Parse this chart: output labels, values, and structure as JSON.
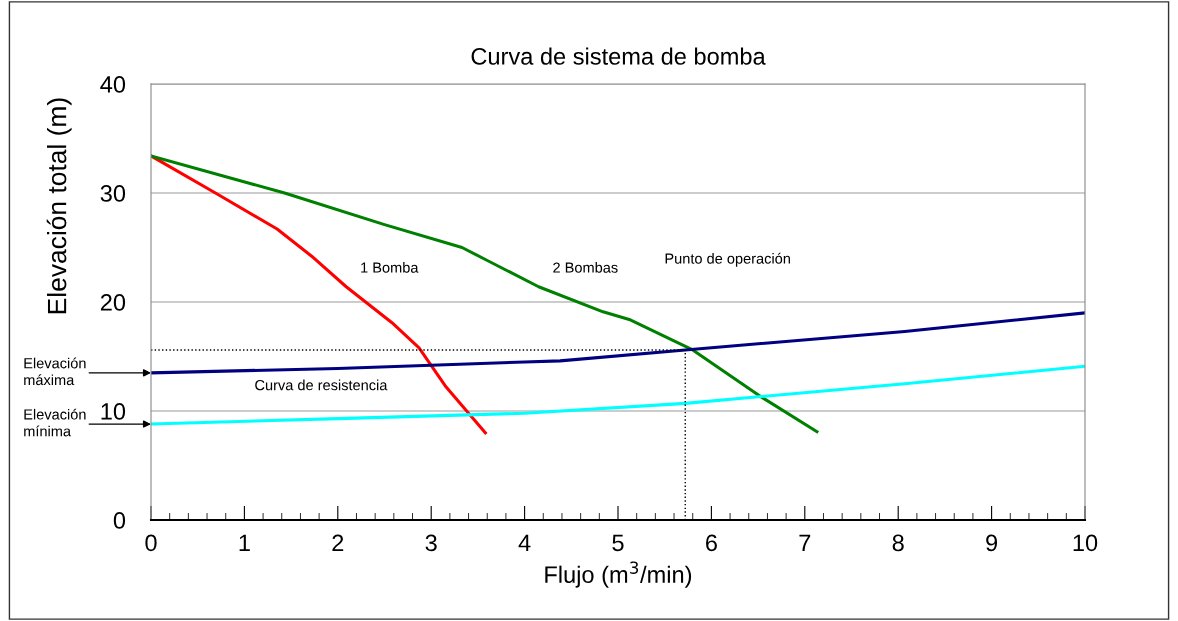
{
  "chart_data": {
    "type": "line",
    "title": "Curva de sistema de bomba",
    "xlabel": "Flujo (m$^{3}$/min)",
    "ylabel": "Elevación total (m)",
    "xlim": [
      0,
      10
    ],
    "ylim": [
      0,
      40
    ],
    "xticks": [
      0,
      1,
      2,
      3,
      4,
      5,
      6,
      7,
      8,
      9,
      10
    ],
    "yticks": [
      0,
      10,
      20,
      30,
      40
    ],
    "grid": "y",
    "legend": false,
    "marker": "none",
    "series": [
      {
        "name": "1 Bomba",
        "color": "#ff0000",
        "x": [
          0,
          0.69,
          1.35,
          1.72,
          2.09,
          2.58,
          2.87,
          3.16,
          3.58
        ],
        "values": [
          33.4,
          30.0,
          26.7,
          24.2,
          21.4,
          18.1,
          15.8,
          12.2,
          8.0
        ]
      },
      {
        "name": "2 Bombas",
        "color": "#008000",
        "x": [
          0,
          1.43,
          2.5,
          3.33,
          3.58,
          4.15,
          4.84,
          5.12,
          5.8,
          6.55,
          7.13
        ],
        "values": [
          33.4,
          30.0,
          27.1,
          25.0,
          23.9,
          21.4,
          19.1,
          18.4,
          15.6,
          11.2,
          8.1
        ]
      },
      {
        "name": "Curva de resistencia",
        "color": "#000080",
        "x": [
          0,
          2,
          4,
          4.38,
          5.72,
          8.07,
          10
        ],
        "values": [
          13.5,
          13.9,
          14.5,
          14.6,
          15.6,
          17.3,
          19.0
        ]
      },
      {
        "color": "#00ffff",
        "x": [
          0,
          2,
          4,
          5.72,
          8.07,
          10
        ],
        "values": [
          8.8,
          9.3,
          9.8,
          10.7,
          12.5,
          14.1
        ]
      },
      {
        "color": "#000000",
        "line_style": "dotted",
        "x": [
          0,
          5.72,
          5.72
        ],
        "values": [
          15.6,
          15.6,
          0
        ]
      }
    ],
    "annotations": [
      "Punto de operación",
      "Elevación\nmáxima",
      "Elevación\nmínima"
    ]
  }
}
